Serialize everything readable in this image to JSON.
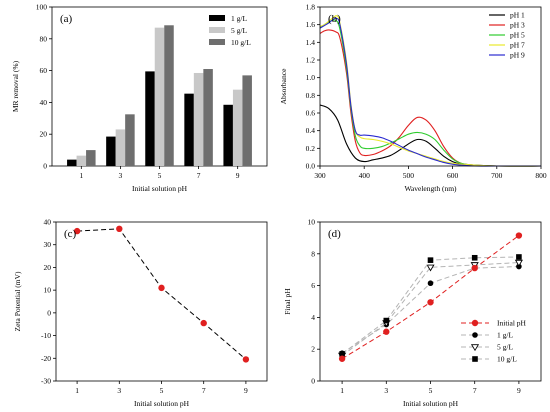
{
  "chart_data": [
    {
      "type": "bar",
      "panel_label": "(a)",
      "xlabel": "Initial solution pH",
      "ylabel": "MR removal (%)",
      "categories": [
        "1",
        "3",
        "5",
        "7",
        "9"
      ],
      "ylim": [
        0,
        100
      ],
      "yticks": [
        0,
        20,
        40,
        60,
        80,
        100
      ],
      "series": [
        {
          "name": "1 g/L",
          "color": "#000000",
          "values": [
            4,
            18.5,
            59.5,
            45.5,
            38.5
          ]
        },
        {
          "name": "5 g/L",
          "color": "#c8c8c8",
          "values": [
            6.5,
            23,
            87,
            58.5,
            48
          ]
        },
        {
          "name": "10 g/L",
          "color": "#6e6e6e",
          "values": [
            10,
            32.5,
            88.5,
            61,
            57
          ]
        }
      ],
      "legend": "top-right",
      "grid": false
    },
    {
      "type": "line",
      "panel_label": "(b)",
      "xlabel": "Wavelength (nm)",
      "ylabel": "Absorbance",
      "xlim": [
        300,
        800
      ],
      "ylim": [
        0,
        1.8
      ],
      "xticks": [
        300,
        400,
        500,
        600,
        700,
        800
      ],
      "yticks": [
        0.0,
        0.2,
        0.4,
        0.6,
        0.8,
        1.0,
        1.2,
        1.4,
        1.6,
        1.8
      ],
      "ytick_labels": [
        "0.0",
        "0.2",
        "0.4",
        "0.6",
        "0.8",
        "1.0",
        "1.2",
        "1.4",
        "1.6",
        "1.8"
      ],
      "series": [
        {
          "name": "pH 1",
          "color": "#000000",
          "x": [
            300,
            320,
            340,
            360,
            380,
            400,
            420,
            440,
            460,
            480,
            500,
            520,
            540,
            560,
            580,
            600,
            620,
            650,
            700,
            800
          ],
          "y": [
            0.69,
            0.65,
            0.52,
            0.25,
            0.09,
            0.05,
            0.07,
            0.09,
            0.12,
            0.18,
            0.25,
            0.3,
            0.28,
            0.2,
            0.11,
            0.05,
            0.02,
            0.01,
            0.0,
            0.0
          ]
        },
        {
          "name": "pH 3",
          "color": "#e02020",
          "x": [
            300,
            310,
            320,
            335,
            345,
            360,
            370,
            380,
            390,
            400,
            420,
            440,
            460,
            480,
            500,
            520,
            540,
            560,
            580,
            600,
            620,
            650,
            700,
            800
          ],
          "y": [
            1.5,
            1.53,
            1.54,
            1.52,
            1.45,
            1.05,
            0.6,
            0.28,
            0.15,
            0.12,
            0.13,
            0.17,
            0.23,
            0.33,
            0.46,
            0.55,
            0.52,
            0.4,
            0.22,
            0.09,
            0.03,
            0.01,
            0.0,
            0.0
          ]
        },
        {
          "name": "pH 5",
          "color": "#2ecc2e",
          "x": [
            300,
            310,
            320,
            335,
            345,
            360,
            370,
            380,
            390,
            400,
            420,
            440,
            460,
            480,
            500,
            520,
            540,
            560,
            580,
            600,
            620,
            650,
            700,
            800
          ],
          "y": [
            1.57,
            1.6,
            1.63,
            1.65,
            1.55,
            1.1,
            0.65,
            0.34,
            0.23,
            0.2,
            0.2,
            0.22,
            0.26,
            0.31,
            0.36,
            0.38,
            0.36,
            0.3,
            0.18,
            0.08,
            0.03,
            0.01,
            0.0,
            0.0
          ]
        },
        {
          "name": "pH 7",
          "color": "#e8e82a",
          "x": [
            300,
            310,
            320,
            330,
            338,
            345,
            360,
            370,
            380,
            390,
            400,
            420,
            440,
            460,
            480,
            500,
            520,
            540,
            560,
            580,
            600,
            620,
            650,
            700,
            800
          ],
          "y": [
            1.58,
            1.6,
            1.64,
            1.68,
            1.7,
            1.62,
            1.18,
            0.7,
            0.4,
            0.33,
            0.31,
            0.3,
            0.28,
            0.25,
            0.21,
            0.17,
            0.14,
            0.11,
            0.08,
            0.05,
            0.03,
            0.02,
            0.01,
            0.0,
            0.0
          ]
        },
        {
          "name": "pH 9",
          "color": "#2a2ad0",
          "x": [
            300,
            310,
            320,
            330,
            338,
            345,
            360,
            370,
            380,
            390,
            400,
            420,
            440,
            460,
            480,
            500,
            520,
            540,
            560,
            580,
            600,
            620,
            650,
            700,
            800
          ],
          "y": [
            1.56,
            1.59,
            1.62,
            1.66,
            1.67,
            1.6,
            1.15,
            0.68,
            0.4,
            0.35,
            0.35,
            0.34,
            0.32,
            0.28,
            0.23,
            0.18,
            0.14,
            0.1,
            0.07,
            0.04,
            0.02,
            0.01,
            0.0,
            0.0,
            0.0
          ]
        }
      ],
      "legend": "top-right",
      "grid": false
    },
    {
      "type": "line",
      "panel_label": "(c)",
      "xlabel": "Initial solution pH",
      "ylabel": "Zeta Potential (mV)",
      "xlim": [
        0,
        10
      ],
      "ylim": [
        -30,
        40
      ],
      "xticks": [
        1,
        3,
        5,
        7,
        9
      ],
      "yticks": [
        -30,
        -20,
        -10,
        0,
        10,
        20,
        30,
        40
      ],
      "series": [
        {
          "color": "#e02020",
          "line_style": "dashed",
          "line_color": "#000000",
          "x": [
            1,
            3,
            5,
            7,
            9
          ],
          "y": [
            36,
            37,
            11,
            -4.5,
            -20.5
          ]
        }
      ],
      "grid": false
    },
    {
      "type": "line",
      "panel_label": "(d)",
      "xlabel": "Initial solution pH",
      "ylabel": "Final pH",
      "xlim": [
        0,
        10
      ],
      "ylim": [
        0,
        10
      ],
      "xticks": [
        1,
        3,
        5,
        7,
        9
      ],
      "yticks": [
        0,
        2,
        4,
        6,
        8,
        10
      ],
      "series": [
        {
          "name": "Initial pH",
          "color": "#e02020",
          "marker": "circle",
          "line_style": "dashed",
          "x": [
            1,
            3,
            5,
            7,
            9
          ],
          "y": [
            1.4,
            3.1,
            4.95,
            7.1,
            9.15
          ]
        },
        {
          "name": "1 g/L",
          "color": "#000000",
          "marker": "circle",
          "line_style": "dashed-gray",
          "x": [
            1,
            3,
            5,
            7,
            9
          ],
          "y": [
            1.75,
            3.55,
            6.15,
            7.1,
            7.2
          ]
        },
        {
          "name": "5 g/L",
          "color": "#000000",
          "marker": "triangle-down-open",
          "line_style": "dashed-gray",
          "x": [
            1,
            3,
            5,
            7,
            9
          ],
          "y": [
            1.6,
            3.65,
            7.15,
            7.3,
            7.45
          ]
        },
        {
          "name": "10 g/L",
          "color": "#000000",
          "marker": "square",
          "line_style": "dashed-gray",
          "x": [
            1,
            3,
            5,
            7,
            9
          ],
          "y": [
            1.7,
            3.8,
            7.6,
            7.75,
            7.8
          ]
        }
      ],
      "legend": "bottom-right",
      "grid": false
    }
  ]
}
